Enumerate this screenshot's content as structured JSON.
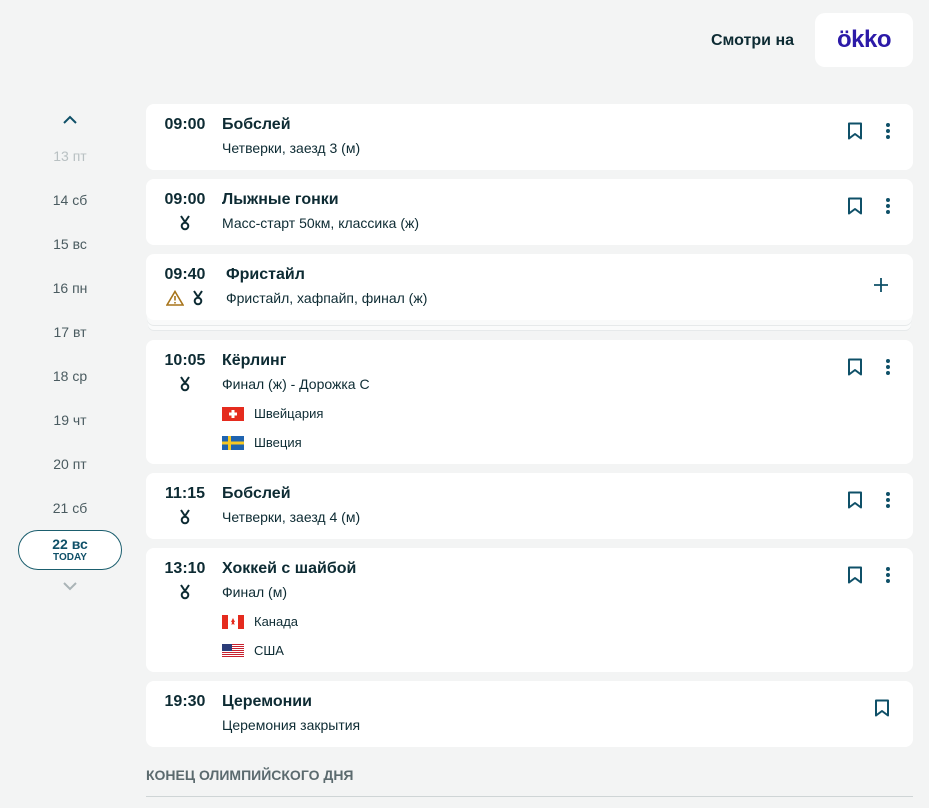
{
  "header": {
    "watch_on": "Смотри на",
    "logo_text": "ökko"
  },
  "dates": [
    {
      "label": "13 пт",
      "state": "disabled"
    },
    {
      "label": "14 сб"
    },
    {
      "label": "15 вс"
    },
    {
      "label": "16 пн"
    },
    {
      "label": "17 вт"
    },
    {
      "label": "18 ср"
    },
    {
      "label": "19 чт"
    },
    {
      "label": "20 пт"
    },
    {
      "label": "21 сб"
    },
    {
      "label": "22 вс",
      "badge": "TODAY",
      "state": "selected"
    }
  ],
  "events": [
    {
      "time": "09:00",
      "title": "Бобслей",
      "subtitle": "Четверки, заезд 3 (м)",
      "medal": false,
      "warning": false,
      "actions": [
        "bookmark",
        "more"
      ]
    },
    {
      "time": "09:00",
      "title": "Лыжные гонки",
      "subtitle": "Масс-старт 50км, классика (ж)",
      "medal": true,
      "warning": false,
      "actions": [
        "bookmark",
        "more"
      ]
    },
    {
      "time": "09:40",
      "title": "Фристайл",
      "subtitle": "Фристайл, хафпайп, финал (ж)",
      "medal": true,
      "warning": true,
      "stacked": true,
      "actions": [
        "expand"
      ]
    },
    {
      "time": "10:05",
      "title": "Кёрлинг",
      "subtitle": "Финал (ж) - Дорожка C",
      "medal": true,
      "warning": false,
      "teams": [
        {
          "name": "Швейцария",
          "flag": "ch"
        },
        {
          "name": "Швеция",
          "flag": "se"
        }
      ],
      "actions": [
        "bookmark",
        "more"
      ]
    },
    {
      "time": "11:15",
      "title": "Бобслей",
      "subtitle": "Четверки, заезд 4 (м)",
      "medal": true,
      "warning": false,
      "actions": [
        "bookmark",
        "more"
      ]
    },
    {
      "time": "13:10",
      "title": "Хоккей с шайбой",
      "subtitle": "Финал (м)",
      "medal": true,
      "warning": false,
      "teams": [
        {
          "name": "Канада",
          "flag": "ca"
        },
        {
          "name": "США",
          "flag": "us"
        }
      ],
      "actions": [
        "bookmark",
        "more"
      ]
    },
    {
      "time": "19:30",
      "title": "Церемонии",
      "subtitle": "Церемония закрытия",
      "medal": false,
      "warning": false,
      "actions": [
        "bookmark"
      ]
    }
  ],
  "footer": "КОНЕЦ ОЛИМПИЙСКОГО ДНЯ",
  "colors": {
    "accent": "#0f5068",
    "logo": "#2c1aa8",
    "warning": "#a7741a",
    "background": "#f3f4f4"
  }
}
